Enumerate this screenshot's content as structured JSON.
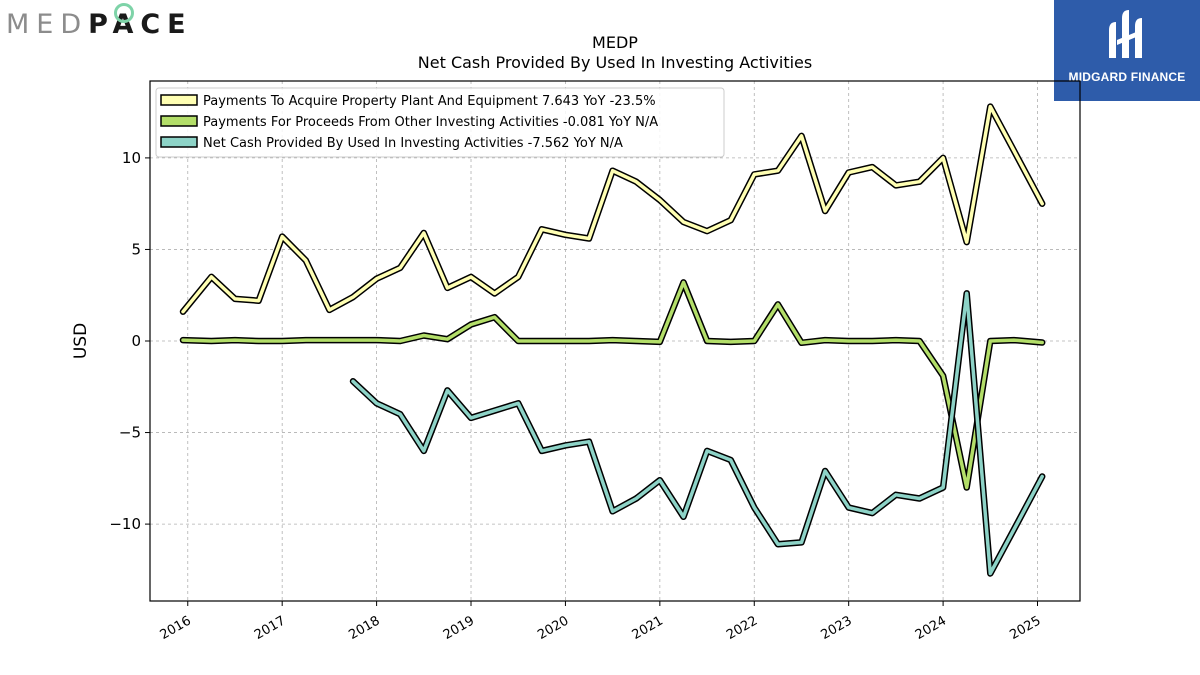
{
  "logos": {
    "left_med": "MED",
    "left_pace": "PACE",
    "right_text": "MIDGARD FINANCE"
  },
  "chart_data": {
    "type": "line",
    "title": "MEDP",
    "subtitle": "Net Cash Provided By Used In Investing Activities",
    "xlabel": "",
    "ylabel": "USD",
    "xlim": [
      2015.6,
      2025.45
    ],
    "ylim": [
      -14.2,
      14.2
    ],
    "yticks": [
      -10,
      -5,
      0,
      5,
      10
    ],
    "yticklabels": [
      "−10",
      "−5",
      "0",
      "5",
      "10"
    ],
    "xticks": [
      2016,
      2017,
      2018,
      2019,
      2020,
      2021,
      2022,
      2023,
      2024,
      2025
    ],
    "grid": true,
    "legend_position": "top-left",
    "series": [
      {
        "name": "Payments To Acquire Property Plant And Equipment",
        "legend": "Payments To Acquire Property Plant And Equipment  7.643 YoY -23.5%",
        "color": "#ffffb3",
        "x": [
          2015.95,
          2016.25,
          2016.5,
          2016.75,
          2017.0,
          2017.25,
          2017.5,
          2017.75,
          2018.0,
          2018.25,
          2018.5,
          2018.75,
          2019.0,
          2019.25,
          2019.5,
          2019.75,
          2020.0,
          2020.25,
          2020.5,
          2020.75,
          2021.0,
          2021.25,
          2021.5,
          2021.75,
          2022.0,
          2022.25,
          2022.5,
          2022.75,
          2023.0,
          2023.25,
          2023.5,
          2023.75,
          2024.0,
          2024.25,
          2024.5,
          2024.75,
          2025.05
        ],
        "values": [
          1.6,
          3.5,
          2.3,
          2.2,
          5.7,
          4.4,
          1.7,
          2.4,
          3.4,
          4.0,
          5.9,
          2.9,
          3.5,
          2.6,
          3.5,
          6.1,
          5.8,
          5.6,
          9.3,
          8.7,
          7.7,
          6.5,
          6.0,
          6.6,
          9.1,
          9.3,
          11.2,
          7.1,
          9.2,
          9.5,
          8.5,
          8.7,
          10.0,
          5.4,
          12.8,
          10.4,
          7.5
        ]
      },
      {
        "name": "Payments For Proceeds From Other Investing Activities",
        "legend": "Payments For Proceeds From Other Investing Activities  -0.081 YoY N/A",
        "color": "#b3de69",
        "x": [
          2015.95,
          2016.25,
          2016.5,
          2016.75,
          2017.0,
          2017.25,
          2017.5,
          2017.75,
          2018.0,
          2018.25,
          2018.5,
          2018.75,
          2019.0,
          2019.25,
          2019.5,
          2019.75,
          2020.0,
          2020.25,
          2020.5,
          2020.75,
          2021.0,
          2021.25,
          2021.5,
          2021.75,
          2022.0,
          2022.25,
          2022.5,
          2022.75,
          2023.0,
          2023.25,
          2023.5,
          2023.75,
          2024.0,
          2024.25,
          2024.5,
          2024.75,
          2025.05
        ],
        "values": [
          0.05,
          0.0,
          0.05,
          0.0,
          0.0,
          0.05,
          0.05,
          0.05,
          0.05,
          0.0,
          0.3,
          0.1,
          0.9,
          1.3,
          0.0,
          0.0,
          0.0,
          0.0,
          0.05,
          0.0,
          -0.05,
          3.2,
          0.0,
          -0.05,
          0.0,
          2.0,
          -0.1,
          0.05,
          0.0,
          0.0,
          0.05,
          0.0,
          -1.9,
          -8.0,
          0.0,
          0.05,
          -0.08
        ]
      },
      {
        "name": "Net Cash Provided By Used In Investing Activities",
        "legend": "Net Cash Provided By Used In Investing Activities  -7.562 YoY N/A",
        "color": "#8dd3c7",
        "x": [
          2017.75,
          2018.0,
          2018.25,
          2018.5,
          2018.75,
          2019.0,
          2019.25,
          2019.5,
          2019.75,
          2020.0,
          2020.25,
          2020.5,
          2020.75,
          2021.0,
          2021.25,
          2021.5,
          2021.75,
          2022.0,
          2022.25,
          2022.5,
          2022.75,
          2023.0,
          2023.25,
          2023.5,
          2023.75,
          2024.0,
          2024.25,
          2024.5,
          2024.75,
          2025.05
        ],
        "values": [
          -2.2,
          -3.4,
          -4.0,
          -6.0,
          -2.7,
          -4.2,
          -3.8,
          -3.4,
          -6.0,
          -5.7,
          -5.5,
          -9.3,
          -8.6,
          -7.6,
          -9.6,
          -6.0,
          -6.5,
          -9.1,
          -11.1,
          -11.0,
          -7.1,
          -9.1,
          -9.4,
          -8.4,
          -8.6,
          -8.0,
          2.6,
          -12.7,
          -10.3,
          -7.4
        ]
      }
    ]
  }
}
